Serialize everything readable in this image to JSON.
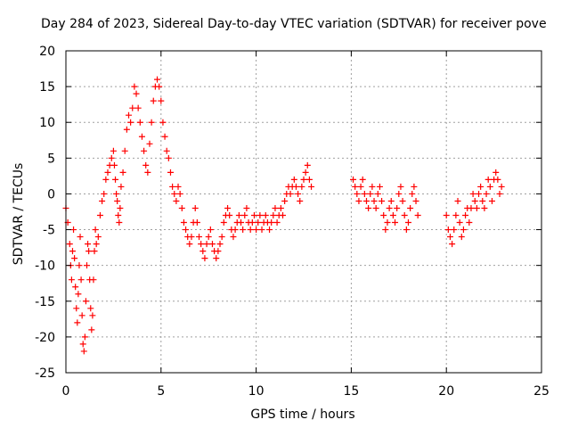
{
  "chart_data": {
    "type": "scatter",
    "title": "Day 284 of 2023, Sidereal Day-to-day VTEC variation (SDTVAR) for receiver pove",
    "xlabel": "GPS time / hours",
    "ylabel": "SDTVAR / TECUs",
    "xlim": [
      0,
      25
    ],
    "ylim": [
      -25,
      20
    ],
    "xticks": [
      0,
      5,
      10,
      15,
      20,
      25
    ],
    "yticks": [
      -25,
      -20,
      -15,
      -10,
      -5,
      0,
      5,
      10,
      15,
      20
    ],
    "grid": true,
    "marker": "+",
    "color": "#ff0000",
    "series": [
      {
        "name": "SDTVAR",
        "points": [
          [
            0.0,
            -2
          ],
          [
            0.1,
            -4
          ],
          [
            0.2,
            -7
          ],
          [
            0.25,
            -10
          ],
          [
            0.3,
            -12
          ],
          [
            0.35,
            -8
          ],
          [
            0.4,
            -5
          ],
          [
            0.45,
            -9
          ],
          [
            0.5,
            -13
          ],
          [
            0.55,
            -16
          ],
          [
            0.6,
            -18
          ],
          [
            0.65,
            -14
          ],
          [
            0.7,
            -10
          ],
          [
            0.75,
            -6
          ],
          [
            0.8,
            -12
          ],
          [
            0.85,
            -17
          ],
          [
            0.9,
            -21
          ],
          [
            0.95,
            -22
          ],
          [
            1.0,
            -20
          ],
          [
            1.05,
            -15
          ],
          [
            1.1,
            -10
          ],
          [
            1.15,
            -7
          ],
          [
            1.2,
            -8
          ],
          [
            1.25,
            -12
          ],
          [
            1.3,
            -16
          ],
          [
            1.35,
            -19
          ],
          [
            1.4,
            -17
          ],
          [
            1.45,
            -12
          ],
          [
            1.5,
            -8
          ],
          [
            1.55,
            -5
          ],
          [
            1.6,
            -7
          ],
          [
            1.7,
            -6
          ],
          [
            1.8,
            -3
          ],
          [
            1.9,
            -1
          ],
          [
            2.0,
            0
          ],
          [
            2.1,
            2
          ],
          [
            2.2,
            3
          ],
          [
            2.3,
            4
          ],
          [
            2.4,
            5
          ],
          [
            2.5,
            6
          ],
          [
            2.55,
            4
          ],
          [
            2.6,
            2
          ],
          [
            2.65,
            0
          ],
          [
            2.7,
            -1
          ],
          [
            2.75,
            -3
          ],
          [
            2.8,
            -4
          ],
          [
            2.85,
            -2
          ],
          [
            2.9,
            1
          ],
          [
            3.0,
            3
          ],
          [
            3.1,
            6
          ],
          [
            3.2,
            9
          ],
          [
            3.3,
            11
          ],
          [
            3.4,
            10
          ],
          [
            3.5,
            12
          ],
          [
            3.6,
            15
          ],
          [
            3.7,
            14
          ],
          [
            3.8,
            12
          ],
          [
            3.9,
            10
          ],
          [
            4.0,
            8
          ],
          [
            4.1,
            6
          ],
          [
            4.2,
            4
          ],
          [
            4.3,
            3
          ],
          [
            4.4,
            7
          ],
          [
            4.5,
            10
          ],
          [
            4.6,
            13
          ],
          [
            4.7,
            15
          ],
          [
            4.8,
            16
          ],
          [
            4.9,
            15
          ],
          [
            5.0,
            13
          ],
          [
            5.1,
            10
          ],
          [
            5.2,
            8
          ],
          [
            5.3,
            6
          ],
          [
            5.4,
            5
          ],
          [
            5.5,
            3
          ],
          [
            5.6,
            1
          ],
          [
            5.7,
            0
          ],
          [
            5.8,
            -1
          ],
          [
            5.9,
            1
          ],
          [
            6.0,
            0
          ],
          [
            6.1,
            -2
          ],
          [
            6.2,
            -4
          ],
          [
            6.3,
            -5
          ],
          [
            6.4,
            -6
          ],
          [
            6.5,
            -7
          ],
          [
            6.6,
            -6
          ],
          [
            6.7,
            -4
          ],
          [
            6.8,
            -2
          ],
          [
            6.9,
            -4
          ],
          [
            7.0,
            -6
          ],
          [
            7.1,
            -7
          ],
          [
            7.2,
            -8
          ],
          [
            7.3,
            -9
          ],
          [
            7.4,
            -7
          ],
          [
            7.5,
            -6
          ],
          [
            7.6,
            -5
          ],
          [
            7.7,
            -7
          ],
          [
            7.8,
            -8
          ],
          [
            7.9,
            -9
          ],
          [
            8.0,
            -8
          ],
          [
            8.1,
            -7
          ],
          [
            8.2,
            -6
          ],
          [
            8.3,
            -4
          ],
          [
            8.4,
            -3
          ],
          [
            8.5,
            -2
          ],
          [
            8.6,
            -3
          ],
          [
            8.7,
            -5
          ],
          [
            8.8,
            -6
          ],
          [
            8.9,
            -5
          ],
          [
            9.0,
            -4
          ],
          [
            9.1,
            -3
          ],
          [
            9.2,
            -4
          ],
          [
            9.3,
            -5
          ],
          [
            9.4,
            -3
          ],
          [
            9.5,
            -2
          ],
          [
            9.6,
            -4
          ],
          [
            9.7,
            -5
          ],
          [
            9.8,
            -4
          ],
          [
            9.9,
            -3
          ],
          [
            10.0,
            -5
          ],
          [
            10.1,
            -4
          ],
          [
            10.2,
            -3
          ],
          [
            10.3,
            -5
          ],
          [
            10.4,
            -4
          ],
          [
            10.5,
            -3
          ],
          [
            10.6,
            -4
          ],
          [
            10.7,
            -5
          ],
          [
            10.8,
            -4
          ],
          [
            10.9,
            -3
          ],
          [
            11.0,
            -2
          ],
          [
            11.1,
            -4
          ],
          [
            11.2,
            -3
          ],
          [
            11.3,
            -2
          ],
          [
            11.4,
            -3
          ],
          [
            11.5,
            -1
          ],
          [
            11.6,
            0
          ],
          [
            11.7,
            1
          ],
          [
            11.8,
            0
          ],
          [
            11.9,
            1
          ],
          [
            12.0,
            2
          ],
          [
            12.1,
            1
          ],
          [
            12.2,
            0
          ],
          [
            12.3,
            -1
          ],
          [
            12.4,
            1
          ],
          [
            12.5,
            2
          ],
          [
            12.6,
            3
          ],
          [
            12.7,
            4
          ],
          [
            12.8,
            2
          ],
          [
            12.9,
            1
          ],
          [
            15.1,
            2
          ],
          [
            15.2,
            1
          ],
          [
            15.3,
            0
          ],
          [
            15.4,
            -1
          ],
          [
            15.5,
            1
          ],
          [
            15.6,
            2
          ],
          [
            15.7,
            0
          ],
          [
            15.8,
            -1
          ],
          [
            15.9,
            -2
          ],
          [
            16.0,
            0
          ],
          [
            16.1,
            1
          ],
          [
            16.2,
            -1
          ],
          [
            16.3,
            -2
          ],
          [
            16.4,
            0
          ],
          [
            16.5,
            1
          ],
          [
            16.6,
            -1
          ],
          [
            16.7,
            -3
          ],
          [
            16.8,
            -5
          ],
          [
            16.9,
            -4
          ],
          [
            17.0,
            -2
          ],
          [
            17.1,
            -1
          ],
          [
            17.2,
            -3
          ],
          [
            17.3,
            -4
          ],
          [
            17.4,
            -2
          ],
          [
            17.5,
            0
          ],
          [
            17.6,
            1
          ],
          [
            17.7,
            -1
          ],
          [
            17.8,
            -3
          ],
          [
            17.9,
            -5
          ],
          [
            18.0,
            -4
          ],
          [
            18.1,
            -2
          ],
          [
            18.2,
            0
          ],
          [
            18.3,
            1
          ],
          [
            18.4,
            -1
          ],
          [
            18.5,
            -3
          ],
          [
            20.0,
            -3
          ],
          [
            20.1,
            -5
          ],
          [
            20.2,
            -6
          ],
          [
            20.3,
            -7
          ],
          [
            20.4,
            -5
          ],
          [
            20.5,
            -3
          ],
          [
            20.6,
            -1
          ],
          [
            20.7,
            -4
          ],
          [
            20.8,
            -6
          ],
          [
            20.9,
            -5
          ],
          [
            21.0,
            -3
          ],
          [
            21.1,
            -2
          ],
          [
            21.2,
            -4
          ],
          [
            21.3,
            -2
          ],
          [
            21.4,
            0
          ],
          [
            21.5,
            -1
          ],
          [
            21.6,
            -2
          ],
          [
            21.7,
            0
          ],
          [
            21.8,
            1
          ],
          [
            21.9,
            -1
          ],
          [
            22.0,
            -2
          ],
          [
            22.1,
            0
          ],
          [
            22.2,
            2
          ],
          [
            22.3,
            1
          ],
          [
            22.4,
            -1
          ],
          [
            22.5,
            2
          ],
          [
            22.6,
            3
          ],
          [
            22.7,
            2
          ],
          [
            22.8,
            0
          ],
          [
            22.9,
            1
          ]
        ]
      }
    ]
  }
}
